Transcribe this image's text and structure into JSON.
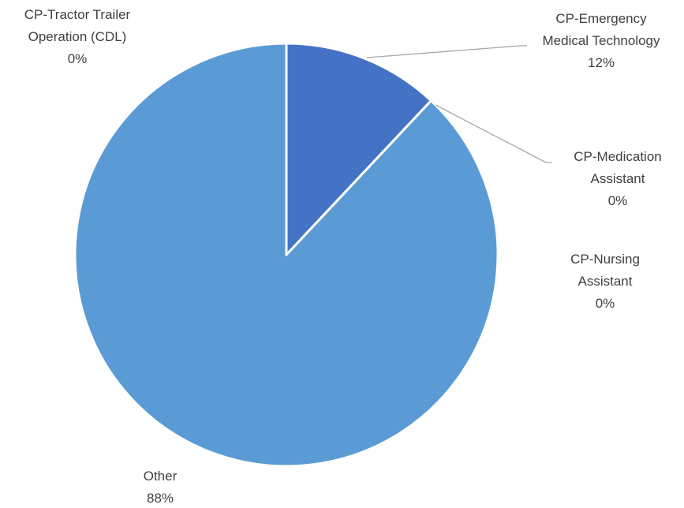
{
  "chart_data": {
    "type": "pie",
    "categories": [
      "CP-Emergency Medical Technology",
      "CP-Medication Assistant",
      "CP-Nursing Assistant",
      "Other",
      "CP-Tractor Trailer Operation (CDL)"
    ],
    "values": [
      12,
      0,
      0,
      88,
      0
    ],
    "value_labels": [
      "12%",
      "0%",
      "0%",
      "88%",
      "0%"
    ],
    "colors": [
      "#4472c4",
      "#ed7d31",
      "#a5a5a5",
      "#5b9bd5",
      "#ffc000"
    ]
  }
}
